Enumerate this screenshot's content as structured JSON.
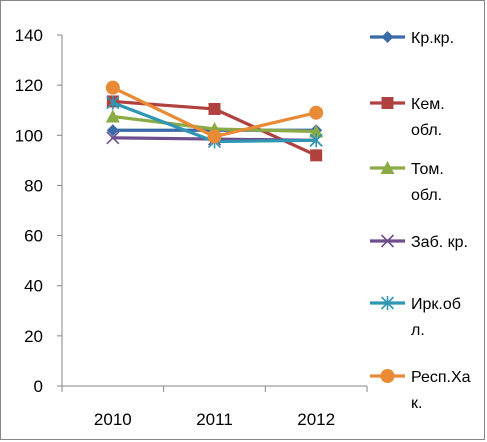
{
  "chart_data": {
    "type": "line",
    "categories": [
      "2010",
      "2011",
      "2012"
    ],
    "ylim": [
      0,
      140
    ],
    "y_ticks": [
      0,
      20,
      40,
      60,
      80,
      100,
      120,
      140
    ],
    "y_tick_labels": [
      "0",
      "20",
      "40",
      "60",
      "80",
      "100",
      "120",
      "140"
    ],
    "grid": false,
    "legend_position": "right",
    "series": [
      {
        "name": "Кр.кр.",
        "legend_lines": [
          "Кр.кр."
        ],
        "values": [
          102,
          102,
          102
        ],
        "color": "#3b6aa8",
        "marker": "diamond"
      },
      {
        "name": "Кем. обл.",
        "legend_lines": [
          "Кем.",
          "обл."
        ],
        "values": [
          113.5,
          110.5,
          92
        ],
        "color": "#b0413e",
        "marker": "square"
      },
      {
        "name": "Том. обл.",
        "legend_lines": [
          "Том.",
          "обл."
        ],
        "values": [
          107.5,
          102.5,
          101.5
        ],
        "color": "#8aab45",
        "marker": "triangle"
      },
      {
        "name": "Заб. кр.",
        "legend_lines": [
          "Заб. кр."
        ],
        "values": [
          99,
          98.5,
          98
        ],
        "color": "#6f4e8f",
        "marker": "x"
      },
      {
        "name": "Ирк.обл.",
        "legend_lines": [
          "Ирк.об",
          "л."
        ],
        "values": [
          113,
          97.5,
          98
        ],
        "color": "#2f96b4",
        "marker": "star"
      },
      {
        "name": "Респ.Хак.",
        "legend_lines": [
          "Респ.Ха",
          "к."
        ],
        "values": [
          119,
          99.5,
          109
        ],
        "color": "#e88a36",
        "marker": "circle"
      }
    ]
  }
}
